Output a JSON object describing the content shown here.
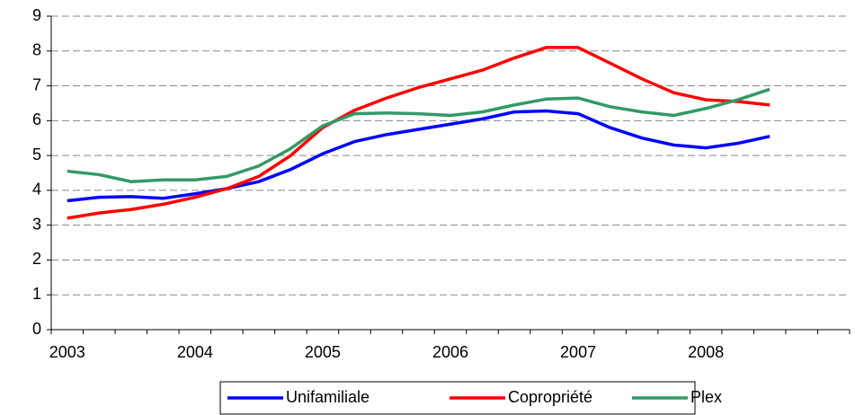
{
  "chart_data": {
    "type": "line",
    "categories": [
      "2003",
      null,
      null,
      null,
      "2004",
      null,
      null,
      null,
      "2005",
      null,
      null,
      null,
      "2006",
      null,
      null,
      null,
      "2007",
      null,
      null,
      null,
      "2008",
      null,
      null,
      null,
      null
    ],
    "series": [
      {
        "name": "Unifamiliale",
        "color": "#0000ff",
        "values": [
          3.7,
          3.8,
          3.82,
          3.77,
          3.9,
          4.05,
          4.25,
          4.6,
          5.05,
          5.4,
          5.6,
          5.75,
          5.9,
          6.05,
          6.25,
          6.28,
          6.2,
          5.8,
          5.5,
          5.3,
          5.22,
          5.35,
          5.55,
          null,
          null
        ]
      },
      {
        "name": "Copropriété",
        "color": "#ff0000",
        "values": [
          3.2,
          3.35,
          3.45,
          3.6,
          3.8,
          4.05,
          4.4,
          5.0,
          5.8,
          6.3,
          6.65,
          6.95,
          7.2,
          7.45,
          7.8,
          8.1,
          8.1,
          7.65,
          7.2,
          6.8,
          6.6,
          6.55,
          6.45,
          null,
          null
        ]
      },
      {
        "name": "Plex",
        "color": "#339966",
        "values": [
          4.55,
          4.45,
          4.25,
          4.3,
          4.3,
          4.4,
          4.7,
          5.2,
          5.85,
          6.2,
          6.22,
          6.2,
          6.15,
          6.25,
          6.45,
          6.62,
          6.65,
          6.4,
          6.25,
          6.15,
          6.35,
          6.6,
          6.9,
          null,
          null
        ]
      }
    ],
    "ylim": [
      0,
      9
    ],
    "yticks": [
      0,
      1,
      2,
      3,
      4,
      5,
      6,
      7,
      8,
      9
    ],
    "grid": true,
    "legend": "bottom"
  }
}
